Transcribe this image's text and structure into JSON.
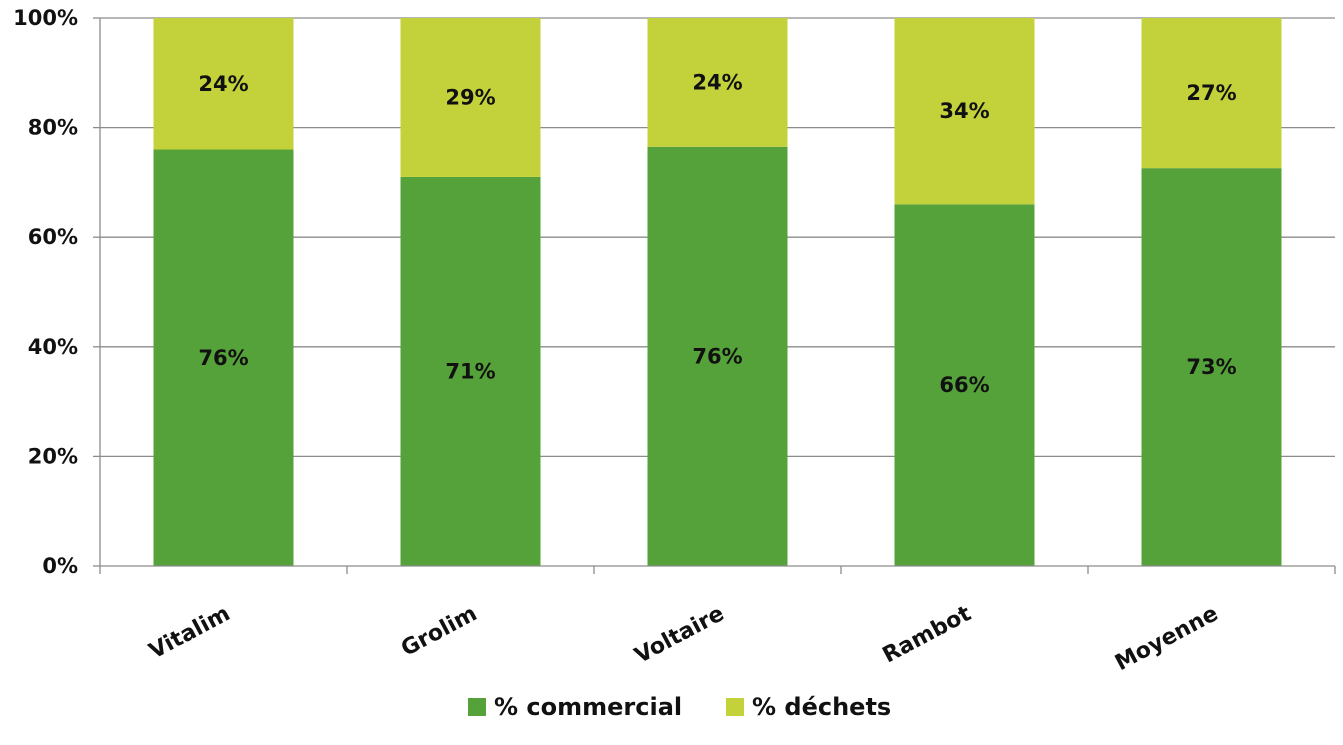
{
  "chart_data": {
    "type": "bar",
    "stacked": true,
    "categories": [
      "Vitalim",
      "Grolim",
      "Voltaire",
      "Rambot",
      "Moyenne"
    ],
    "series": [
      {
        "name": "% commercial",
        "values": [
          76,
          71,
          76.5,
          66,
          72.6
        ],
        "labels": [
          "76%",
          "71%",
          "76%",
          "66%",
          "73%"
        ],
        "color": "#55a13a"
      },
      {
        "name": "% déchets",
        "values": [
          24,
          29,
          23.5,
          34,
          27.4
        ],
        "labels": [
          "24%",
          "29%",
          "24%",
          "34%",
          "27%"
        ],
        "color": "#c3d23a"
      }
    ],
    "yticks": [
      "0%",
      "20%",
      "40%",
      "60%",
      "80%",
      "100%"
    ],
    "ylim": [
      0,
      100
    ],
    "grid": true,
    "legend_position": "bottom-center"
  }
}
